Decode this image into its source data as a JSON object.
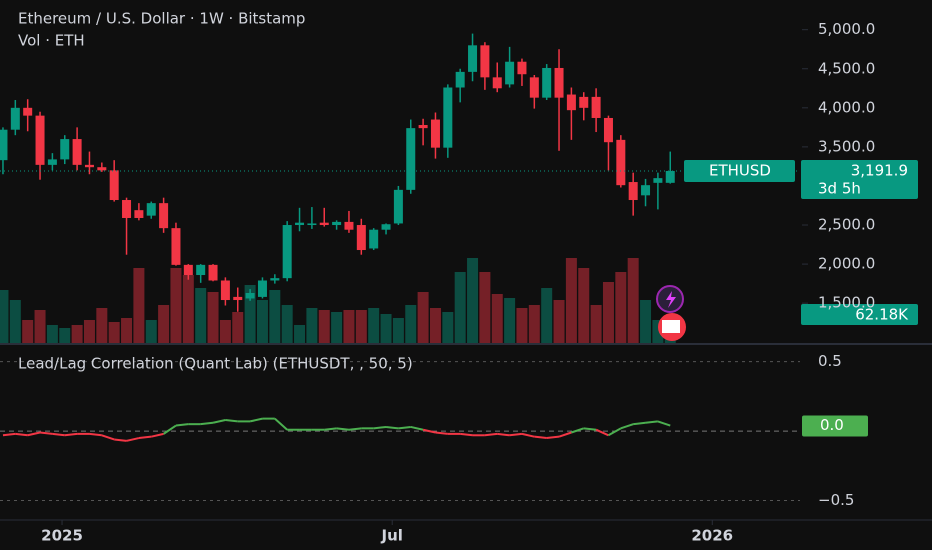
{
  "chart_data": [
    {
      "type": "candlestick",
      "title": "Ethereum / U.S. Dollar · 1W · Bitstamp",
      "open": [
        3330,
        3720,
        4000,
        3900,
        3270,
        3340,
        3600,
        3270,
        3240,
        3200,
        2820,
        2690,
        2620,
        2780,
        2460,
        1990,
        1860,
        1990,
        1790,
        1580,
        1560,
        1580,
        1790,
        1820,
        2500,
        2500,
        2530,
        2500,
        2540,
        2500,
        2200,
        2440,
        2520,
        2950,
        3780,
        3850,
        3490,
        4260,
        4460,
        4800,
        4390,
        4300,
        4590,
        4390,
        4130,
        4510,
        4170,
        4140,
        4140,
        3870,
        3590,
        3050,
        2880,
        3040,
        3040
      ],
      "high": [
        3750,
        4100,
        4110,
        3950,
        3420,
        3650,
        3750,
        3440,
        3300,
        3330,
        2850,
        2780,
        2800,
        2850,
        2530,
        2000,
        2000,
        2000,
        1830,
        1700,
        1680,
        1830,
        1870,
        2550,
        2720,
        2730,
        2720,
        2560,
        2680,
        2580,
        2460,
        2520,
        3000,
        3850,
        3860,
        3940,
        4300,
        4500,
        4950,
        4840,
        4580,
        4780,
        4630,
        4420,
        4560,
        4750,
        4260,
        4200,
        4250,
        3900,
        3650,
        3170,
        3090,
        3170,
        3440
      ],
      "low": [
        3150,
        3650,
        3700,
        3080,
        3200,
        3280,
        3200,
        3150,
        3180,
        2800,
        2120,
        2560,
        2580,
        2400,
        1980,
        1800,
        1760,
        1780,
        1470,
        1390,
        1530,
        1560,
        1750,
        1780,
        2420,
        2450,
        2480,
        2440,
        2400,
        2120,
        2180,
        2380,
        2500,
        2900,
        3520,
        3350,
        3360,
        4070,
        4340,
        4230,
        4200,
        4260,
        4280,
        3990,
        4100,
        3450,
        3590,
        3840,
        3690,
        3200,
        2980,
        2620,
        2740,
        2700,
        3030
      ],
      "close": [
        3720,
        4000,
        3900,
        3270,
        3340,
        3600,
        3270,
        3240,
        3200,
        2820,
        2590,
        2590,
        2780,
        2460,
        1990,
        1860,
        1990,
        1790,
        1540,
        1540,
        1630,
        1790,
        1820,
        2500,
        2530,
        2520,
        2500,
        2540,
        2440,
        2180,
        2440,
        2510,
        2950,
        3740,
        3740,
        3490,
        4260,
        4460,
        4800,
        4390,
        4250,
        4590,
        4430,
        4130,
        4510,
        4130,
        3970,
        4000,
        3870,
        3560,
        3010,
        2820,
        3010,
        3100,
        3191.9
      ],
      "up_color": "#089981",
      "down_color": "#f23645",
      "ylim": [
        990,
        5380
      ],
      "yticks": [
        {
          "value": 5000,
          "label": "5,000.0"
        },
        {
          "value": 4500,
          "label": "4,500.0"
        },
        {
          "value": 4000,
          "label": "4,000.0"
        },
        {
          "value": 3500,
          "label": "3,500.0"
        },
        {
          "value": 2500,
          "label": "2,500.0"
        },
        {
          "value": 2000,
          "label": "2,000.0"
        },
        {
          "value": 1500,
          "label": "1,500.0"
        }
      ],
      "xlim": [
        -0.24,
        64.5
      ],
      "xticks": [
        {
          "value": 4.78,
          "label": "2025"
        },
        {
          "value": 31.5,
          "label": "Jul"
        },
        {
          "value": 57.4,
          "label": "2026"
        }
      ],
      "last_label": {
        "name": "ETHUSD",
        "value_label": "3,191.9",
        "countdown": "3d 5h"
      }
    },
    {
      "type": "volume",
      "title": "Vol · ETH",
      "values": [
        265000,
        215000,
        115000,
        165000,
        90000,
        75000,
        90000,
        115000,
        175000,
        105000,
        125000,
        375000,
        115000,
        190000,
        375000,
        340000,
        275000,
        255000,
        115000,
        155000,
        290000,
        215000,
        265000,
        190000,
        90000,
        175000,
        165000,
        155000,
        165000,
        165000,
        175000,
        145000,
        125000,
        190000,
        255000,
        175000,
        155000,
        355000,
        425000,
        355000,
        245000,
        225000,
        175000,
        190000,
        275000,
        215000,
        425000,
        375000,
        190000,
        305000,
        355000,
        425000,
        215000,
        115000,
        62180
      ],
      "last_value_label": "62.18K",
      "ylim": [
        0,
        1715000
      ]
    },
    {
      "type": "line",
      "title": "Lead/Lag Correlation (Quant Lab) (ETHUSDT, , 50, 5)",
      "values": [
        -0.03,
        -0.02,
        -0.03,
        -0.01,
        -0.02,
        -0.03,
        -0.02,
        -0.02,
        -0.03,
        -0.06,
        -0.07,
        -0.05,
        -0.04,
        -0.02,
        0.04,
        0.05,
        0.05,
        0.06,
        0.08,
        0.07,
        0.07,
        0.09,
        0.09,
        0.01,
        0.01,
        0.01,
        0.01,
        0.02,
        0.01,
        0.02,
        0.02,
        0.03,
        0.02,
        0.03,
        0.01,
        -0.01,
        -0.02,
        -0.02,
        -0.03,
        -0.03,
        -0.02,
        -0.03,
        -0.02,
        -0.04,
        -0.05,
        -0.04,
        -0.01,
        0.02,
        0.01,
        -0.03,
        0.02,
        0.05,
        0.06,
        0.07,
        0.04
      ],
      "up_color": "#4caf50",
      "down_color": "#f23645",
      "ylim": [
        -0.64,
        0.62
      ],
      "yticks": [
        0.5,
        {
          "value": -0.5,
          "label": "−0.5"
        }
      ],
      "last_value_label": "0.0"
    }
  ]
}
